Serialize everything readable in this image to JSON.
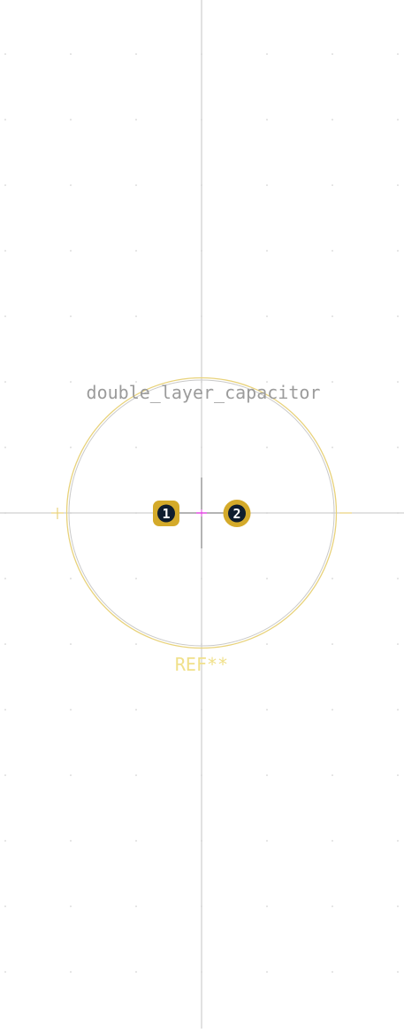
{
  "footprint": {
    "value_text": "double_layer_capacitor",
    "reference_text": "REF**"
  },
  "pads": [
    {
      "number": "1",
      "shape": "rounded-square"
    },
    {
      "number": "2",
      "shape": "circle"
    }
  ],
  "colors": {
    "background": "#ffffff",
    "grid_dot": "#c8c8c8",
    "axis_line": "#c4c4c4",
    "silkscreen_outline": "#e8d27a",
    "courtyard_outline": "#c9c9c9",
    "value_text": "#9b9b9b",
    "reference_text": "#f0e08a",
    "pad_fill": "#d4aa2a",
    "pad_hole": "#0f1d2e",
    "pad_number": "#ffffff",
    "anchor_mark": "#e040e0"
  },
  "icons": {
    "origin_crosshair": "crosshair-icon",
    "anchor": "anchor-icon"
  }
}
